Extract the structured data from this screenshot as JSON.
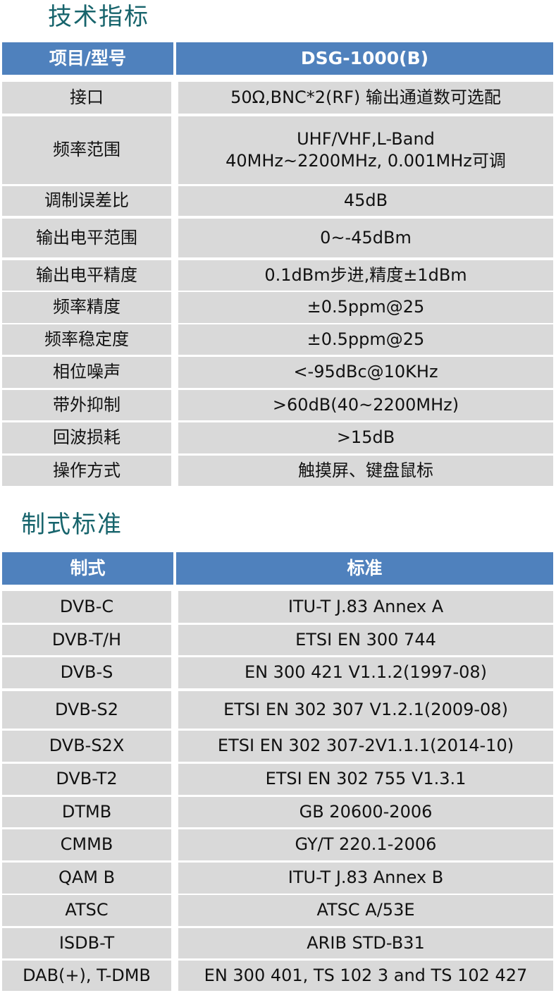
{
  "specs": {
    "title": "技术指标",
    "header": [
      "项目/型号",
      "DSG-1000(B)"
    ],
    "rows": [
      [
        "接口",
        "50Ω,BNC*2(RF) 输出通道数可选配"
      ],
      [
        "频率范围",
        "UHF/VHF,L-Band\n40MHz~2200MHz, 0.001MHz可调"
      ],
      [
        "调制误差比",
        "45dB"
      ],
      [
        "输出电平范围",
        "0~-45dBm"
      ],
      [
        "输出电平精度",
        "0.1dBm步进,精度±1dBm"
      ],
      [
        "频率精度",
        "±0.5ppm@25"
      ],
      [
        "频率稳定度",
        "±0.5ppm@25"
      ],
      [
        "相位噪声",
        "<-95dBc@10KHz"
      ],
      [
        "带外抑制",
        ">60dB(40~2200MHz)"
      ],
      [
        "回波损耗",
        ">15dB"
      ],
      [
        "操作方式",
        "触摸屏、键盘鼠标"
      ]
    ]
  },
  "standards": {
    "title": "制式标准",
    "header": [
      "制式",
      "标准"
    ],
    "rows": [
      [
        "DVB-C",
        "ITU-T J.83 Annex A"
      ],
      [
        "DVB-T/H",
        "ETSI EN 300 744"
      ],
      [
        "DVB-S",
        "EN 300 421 V1.1.2(1997-08)"
      ],
      [
        "DVB-S2",
        "ETSI EN 302 307 V1.2.1(2009-08)"
      ],
      [
        "DVB-S2X",
        "ETSI EN 302 307-2V1.1.1(2014-10)"
      ],
      [
        "DVB-T2",
        "ETSI EN 302 755 V1.3.1"
      ],
      [
        "DTMB",
        "GB 20600-2006"
      ],
      [
        "CMMB",
        "GY/T 220.1-2006"
      ],
      [
        "QAM B",
        "ITU-T J.83 Annex B"
      ],
      [
        "ATSC",
        "ATSC A/53E"
      ],
      [
        "ISDB-T",
        "ARIB STD-B31"
      ],
      [
        "DAB(+), T-DMB",
        "EN 300 401, TS 102 3 and TS 102 427"
      ]
    ]
  },
  "colors": {
    "header_bg": "#4f81bd",
    "cell_bg": "#d9d9d9",
    "title": "#17646c"
  }
}
